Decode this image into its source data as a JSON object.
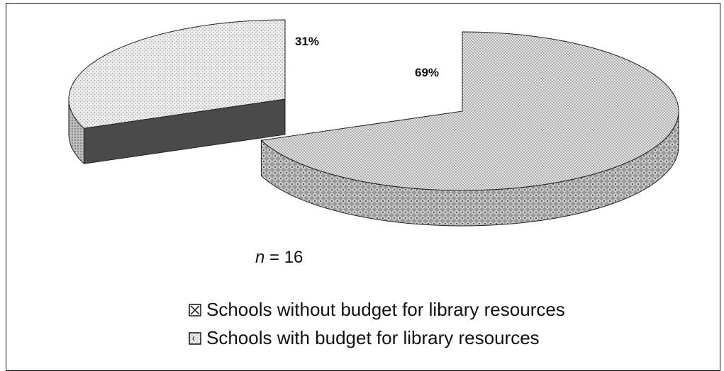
{
  "chart_data": {
    "type": "pie",
    "title": "",
    "slices": [
      {
        "label": "Schools without budget for library resources",
        "value": 69,
        "data_label": "69%"
      },
      {
        "label": "Schools with budget for library resources",
        "value": 31,
        "data_label": "31%"
      }
    ],
    "legend_position": "bottom",
    "annotation": {
      "var": "n",
      "text": " = 16"
    },
    "colors": {
      "large_top": "#d2d2d2",
      "large_side": "#8c8c8c",
      "small_top": "#dcdcdc",
      "small_face": "#4a4a4a",
      "small_side": "#9c9c9c"
    }
  }
}
